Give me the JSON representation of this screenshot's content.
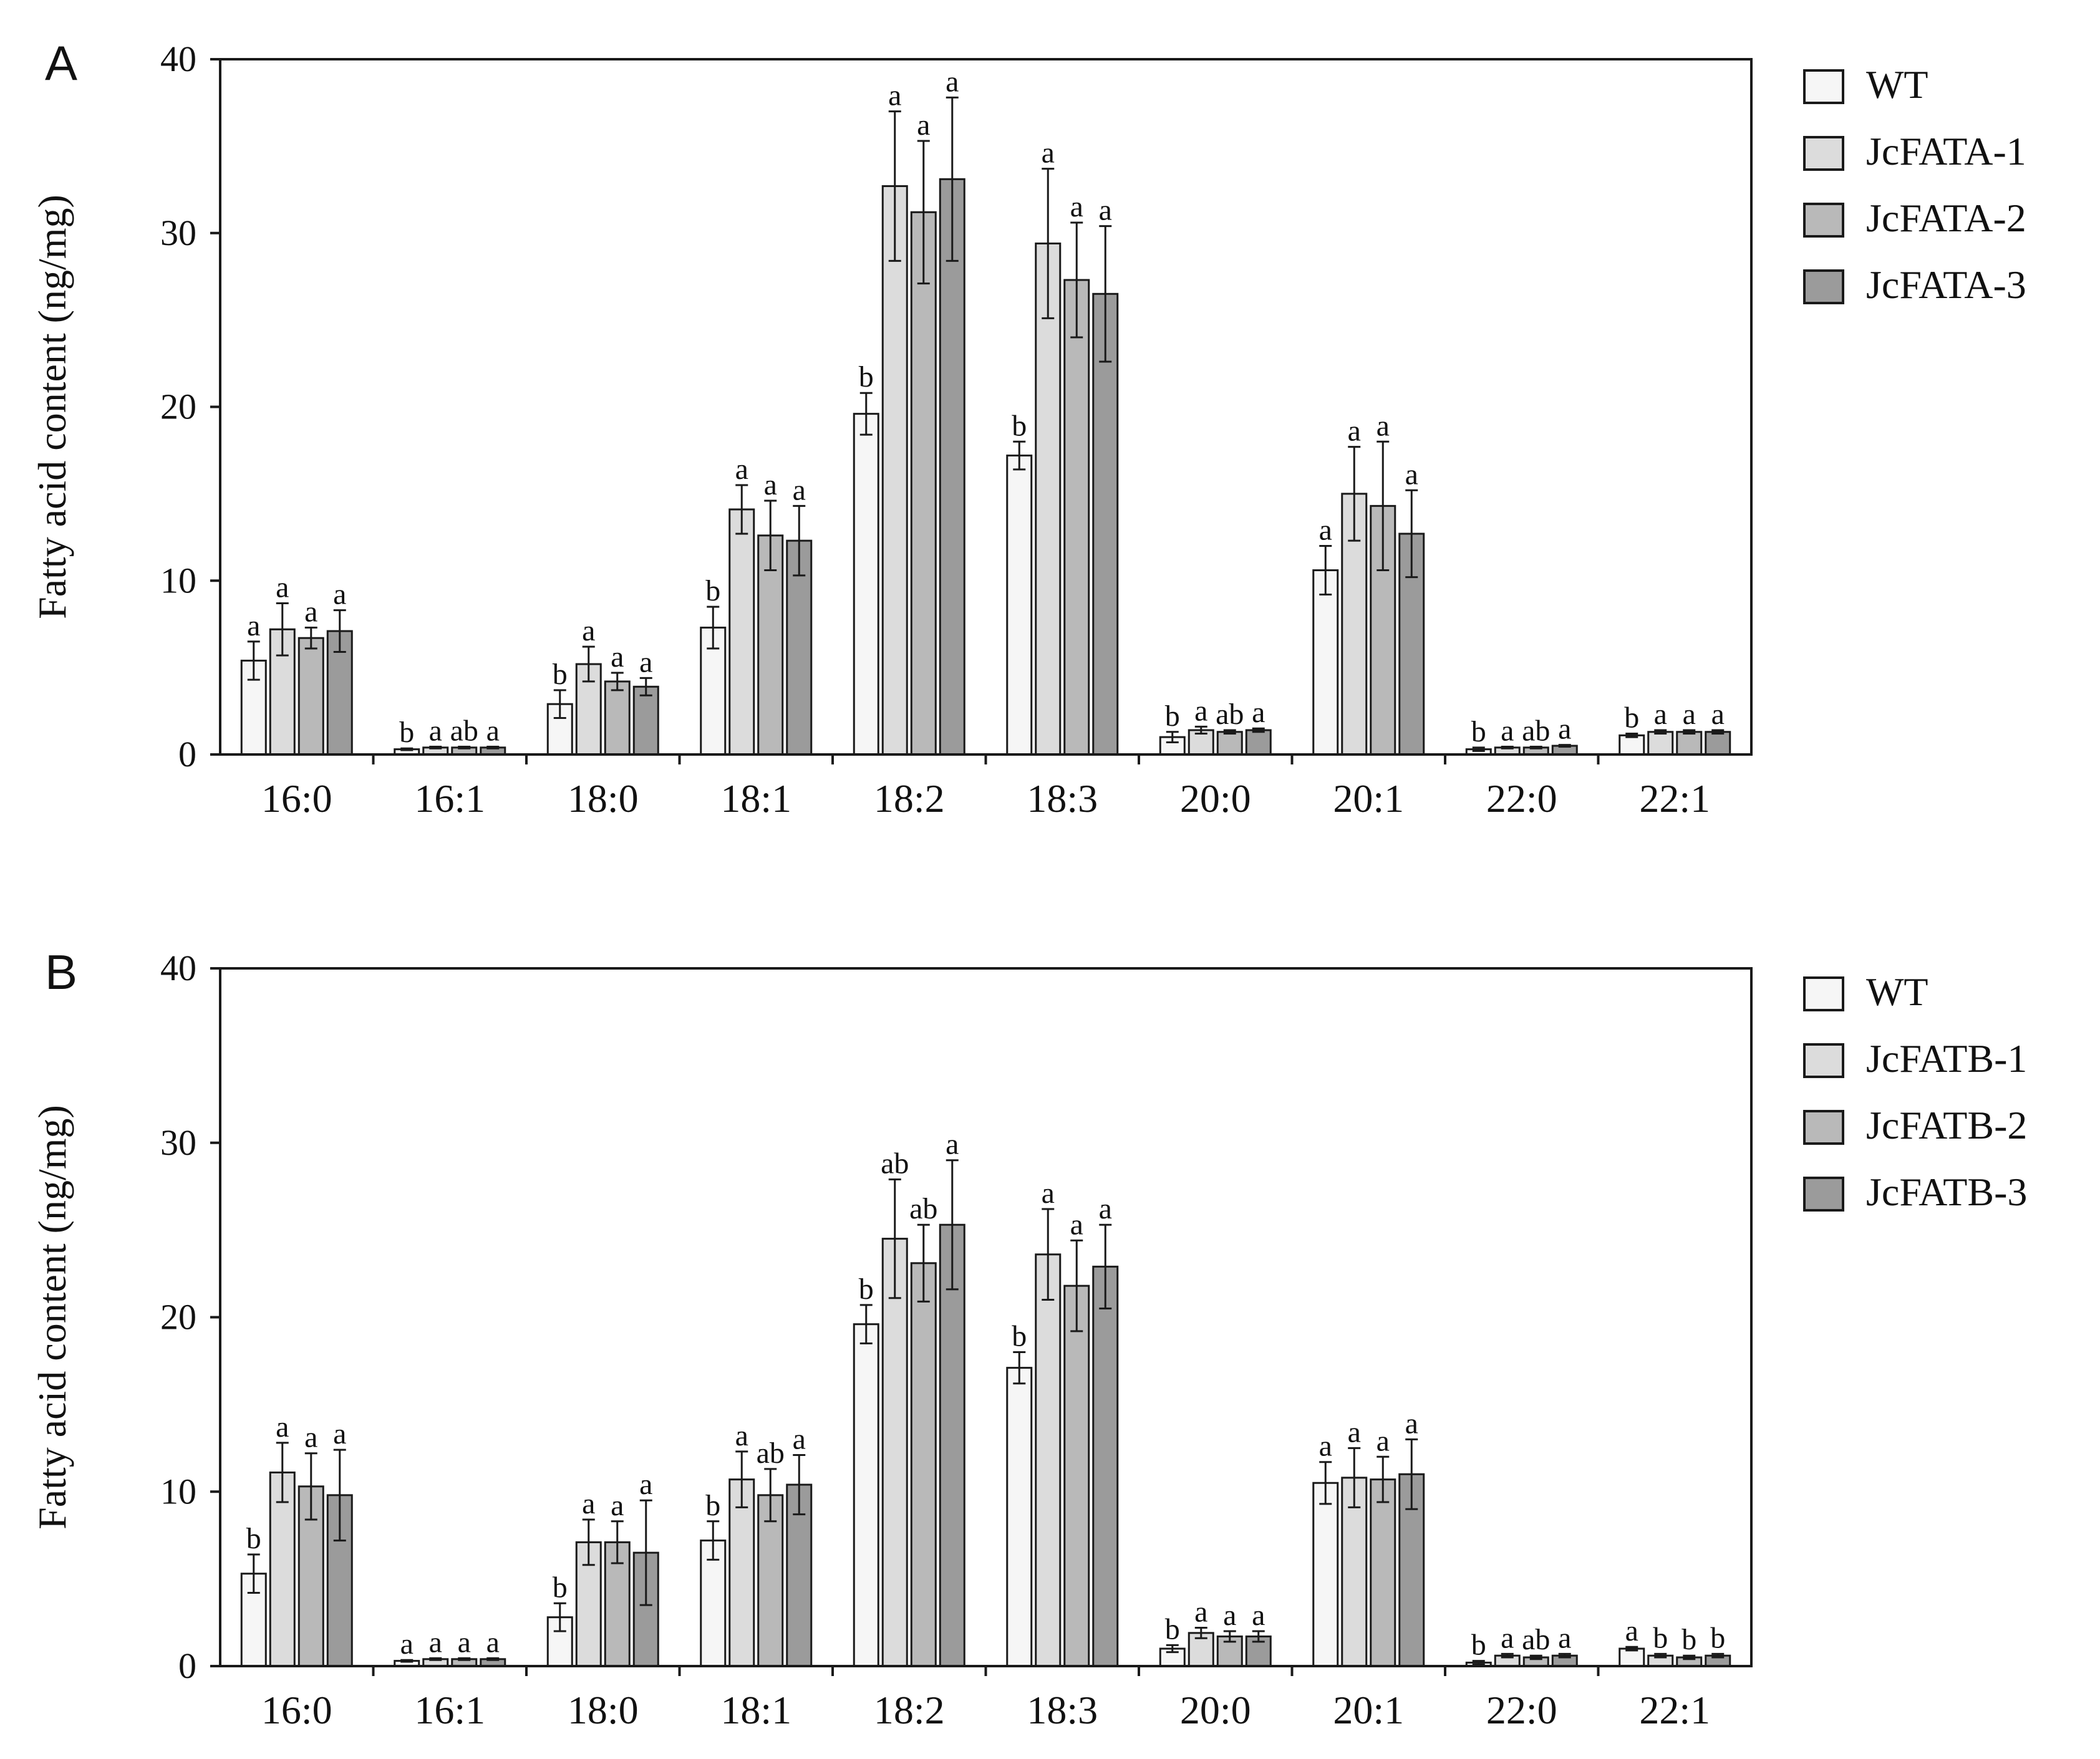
{
  "colors": {
    "WT": "#f6f6f6",
    "line1": "#dcdcdc",
    "line2": "#b9b9b9",
    "line3": "#9b9b9b",
    "axis": "#1a1a1a"
  },
  "chart_data": [
    {
      "panel": "A",
      "type": "bar",
      "title": "",
      "xlabel": "",
      "ylabel": "Fatty acid content (ng/mg)",
      "ylim": [
        0,
        40
      ],
      "yticks": [
        "0",
        "10",
        "20",
        "30",
        "40"
      ],
      "categories": [
        "16:0",
        "16:1",
        "18:0",
        "18:1",
        "18:2",
        "18:3",
        "20:0",
        "20:1",
        "22:0",
        "22:1"
      ],
      "grid": false,
      "legend_position": "right",
      "series": [
        {
          "name": "WT",
          "values": [
            5.4,
            0.3,
            2.9,
            7.3,
            19.6,
            17.2,
            1.0,
            10.6,
            0.3,
            1.1
          ],
          "errors": [
            1.1,
            0.05,
            0.8,
            1.2,
            1.2,
            0.8,
            0.3,
            1.4,
            0.1,
            0.1
          ],
          "letters": [
            "a",
            "b",
            "b",
            "b",
            "b",
            "b",
            "b",
            "a",
            "b",
            "b"
          ]
        },
        {
          "name": "JcFATA-1",
          "values": [
            7.2,
            0.4,
            5.2,
            14.1,
            32.7,
            29.4,
            1.4,
            15.0,
            0.4,
            1.3
          ],
          "errors": [
            1.5,
            0.05,
            1.0,
            1.4,
            4.3,
            4.3,
            0.2,
            2.7,
            0.05,
            0.1
          ],
          "letters": [
            "a",
            "a",
            "a",
            "a",
            "a",
            "a",
            "a",
            "a",
            "a",
            "a"
          ]
        },
        {
          "name": "JcFATA-2",
          "values": [
            6.7,
            0.4,
            4.2,
            12.6,
            31.2,
            27.3,
            1.3,
            14.3,
            0.4,
            1.3
          ],
          "errors": [
            0.6,
            0.05,
            0.5,
            2.0,
            4.1,
            3.3,
            0.1,
            3.7,
            0.05,
            0.1
          ],
          "letters": [
            "a",
            "ab",
            "a",
            "a",
            "a",
            "a",
            "ab",
            "a",
            "ab",
            "a"
          ]
        },
        {
          "name": "JcFATA-3",
          "values": [
            7.1,
            0.4,
            3.9,
            12.3,
            33.1,
            26.5,
            1.4,
            12.7,
            0.5,
            1.3
          ],
          "errors": [
            1.2,
            0.05,
            0.5,
            2.0,
            4.7,
            3.9,
            0.1,
            2.5,
            0.05,
            0.1
          ],
          "letters": [
            "a",
            "a",
            "a",
            "a",
            "a",
            "a",
            "a",
            "a",
            "a",
            "a"
          ]
        }
      ]
    },
    {
      "panel": "B",
      "type": "bar",
      "title": "",
      "xlabel": "",
      "ylabel": "Fatty acid content (ng/mg)",
      "ylim": [
        0,
        40
      ],
      "yticks": [
        "0",
        "10",
        "20",
        "30",
        "40"
      ],
      "categories": [
        "16:0",
        "16:1",
        "18:0",
        "18:1",
        "18:2",
        "18:3",
        "20:0",
        "20:1",
        "22:0",
        "22:1"
      ],
      "grid": false,
      "legend_position": "right",
      "series": [
        {
          "name": "WT",
          "values": [
            5.3,
            0.3,
            2.8,
            7.2,
            19.6,
            17.1,
            1.0,
            10.5,
            0.2,
            1.0
          ],
          "errors": [
            1.1,
            0.05,
            0.8,
            1.1,
            1.1,
            0.9,
            0.2,
            1.2,
            0.1,
            0.1
          ],
          "letters": [
            "b",
            "a",
            "b",
            "b",
            "b",
            "b",
            "b",
            "a",
            "b",
            "a"
          ]
        },
        {
          "name": "JcFATB-1",
          "values": [
            11.1,
            0.4,
            7.1,
            10.7,
            24.5,
            23.6,
            1.9,
            10.8,
            0.6,
            0.6
          ],
          "errors": [
            1.7,
            0.05,
            1.3,
            1.6,
            3.4,
            2.6,
            0.3,
            1.7,
            0.1,
            0.1
          ],
          "letters": [
            "a",
            "a",
            "a",
            "a",
            "ab",
            "a",
            "a",
            "a",
            "a",
            "b"
          ]
        },
        {
          "name": "JcFATB-2",
          "values": [
            10.3,
            0.4,
            7.1,
            9.8,
            23.1,
            21.8,
            1.7,
            10.7,
            0.5,
            0.5
          ],
          "errors": [
            1.9,
            0.05,
            1.2,
            1.5,
            2.2,
            2.6,
            0.3,
            1.3,
            0.1,
            0.1
          ],
          "letters": [
            "a",
            "a",
            "a",
            "ab",
            "ab",
            "a",
            "a",
            "a",
            "ab",
            "b"
          ]
        },
        {
          "name": "JcFATB-3",
          "values": [
            9.8,
            0.4,
            6.5,
            10.4,
            25.3,
            22.9,
            1.7,
            11.0,
            0.6,
            0.6
          ],
          "errors": [
            2.6,
            0.05,
            3.0,
            1.7,
            3.7,
            2.4,
            0.3,
            2.0,
            0.1,
            0.1
          ],
          "letters": [
            "a",
            "a",
            "a",
            "a",
            "a",
            "a",
            "a",
            "a",
            "a",
            "b"
          ]
        }
      ]
    }
  ]
}
